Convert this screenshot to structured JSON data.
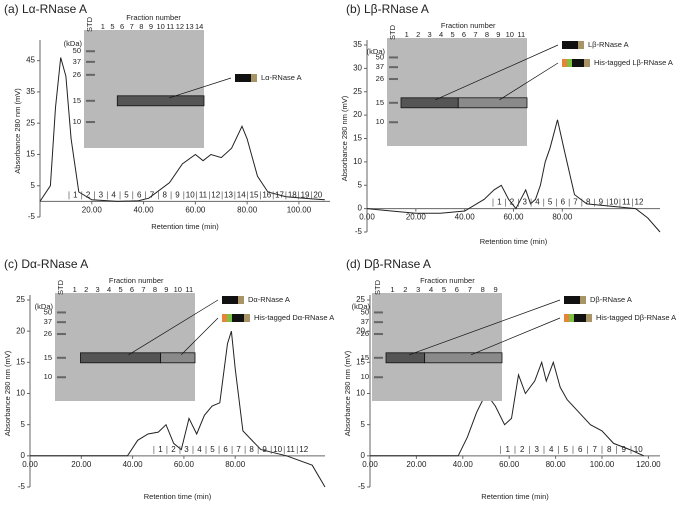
{
  "chart_data": [
    {
      "type": "line",
      "title": "(a) Lα-RNase A",
      "xlabel": "Retention time (min)",
      "ylabel": "Absorbance 280 nm (mV)",
      "x": [
        0,
        4,
        6,
        8,
        10,
        12,
        15,
        20,
        30,
        38,
        42,
        50,
        55,
        60,
        63,
        66,
        70,
        74,
        78,
        80,
        84,
        88,
        95,
        105,
        110
      ],
      "values": [
        0,
        5,
        30,
        46,
        40,
        20,
        3,
        0.5,
        0,
        0.2,
        1,
        6,
        12,
        15,
        13,
        15,
        14,
        17,
        24,
        20,
        8,
        3,
        1.5,
        0.8,
        0.5
      ],
      "xlim": [
        0,
        112
      ],
      "ylim": [
        -5,
        50
      ],
      "xticks": [
        {
          "value": 20,
          "label": "20.00"
        },
        {
          "value": 40,
          "label": "40.00"
        },
        {
          "value": 60,
          "label": "60.00"
        },
        {
          "value": 80,
          "label": "80.00"
        },
        {
          "value": 100,
          "label": "100.00"
        }
      ],
      "yticks": [
        -5,
        5,
        15,
        25,
        35,
        45
      ],
      "fractions": [
        "1",
        "2",
        "3",
        "4",
        "5",
        "6",
        "7",
        "8",
        "9",
        "10",
        "11",
        "12",
        "13",
        "14",
        "15",
        "16",
        "17",
        "18",
        "19",
        "20"
      ],
      "gel": {
        "heading": "Fraction number",
        "std": "STD",
        "kda": "(kDa)",
        "markers": [
          "50",
          "37",
          "26",
          "15",
          "10"
        ],
        "lanes": [
          "1",
          "5",
          "6",
          "7",
          "8",
          "9",
          "10",
          "11",
          "12",
          "13",
          "14"
        ],
        "legend": [
          "Lα-RNase A"
        ]
      }
    },
    {
      "type": "line",
      "title": "(b) Lβ-RNase A",
      "xlabel": "Retention time (min)",
      "ylabel": "Absorbance 280 nm (mV)",
      "x": [
        0,
        10,
        20,
        30,
        40,
        48,
        52,
        55,
        58,
        61,
        63,
        65,
        67,
        69,
        71,
        73,
        75,
        78,
        81,
        85,
        90,
        100,
        110,
        115,
        120
      ],
      "values": [
        0,
        -0.5,
        -1,
        -1,
        -0.5,
        2,
        4,
        5,
        2,
        0,
        2,
        4,
        1,
        2,
        5,
        10,
        13,
        19,
        12,
        3,
        1,
        0.5,
        0,
        -2,
        -5
      ],
      "xlim": [
        0,
        120
      ],
      "ylim": [
        -5,
        35
      ],
      "xticks": [
        {
          "value": 0,
          "label": "0.00"
        },
        {
          "value": 20,
          "label": "20.00"
        },
        {
          "value": 40,
          "label": "40.00"
        },
        {
          "value": 60,
          "label": "60.00"
        },
        {
          "value": 80,
          "label": "80.00"
        }
      ],
      "yticks": [
        -5,
        0,
        5,
        10,
        15,
        20,
        25,
        30,
        35
      ],
      "fractions": [
        "1",
        "2",
        "3",
        "4",
        "5",
        "6",
        "7",
        "8",
        "9",
        "10",
        "11",
        "12"
      ],
      "gel": {
        "heading": "Fraction number",
        "std": "STD",
        "kda": "(kDa)",
        "markers": [
          "50",
          "37",
          "26",
          "15",
          "10"
        ],
        "lanes": [
          "1",
          "2",
          "3",
          "4",
          "5",
          "6",
          "7",
          "8",
          "9",
          "10",
          "11"
        ],
        "legend": [
          "Lβ-RNase A",
          "His-tagged Lβ-RNase A"
        ]
      }
    },
    {
      "type": "line",
      "title": "(c) Dα-RNase A",
      "xlabel": "Retention time (min)",
      "ylabel": "Absorbance 280 nm (mV)",
      "x": [
        0,
        20,
        38,
        42,
        46,
        50,
        53,
        56,
        59,
        62,
        65,
        68,
        71,
        74,
        77,
        78.5,
        80,
        83,
        90,
        100,
        110,
        115
      ],
      "values": [
        0,
        0,
        0,
        2.5,
        3.5,
        3.8,
        5,
        2,
        1,
        6,
        3.5,
        6.5,
        8,
        8.5,
        18,
        20,
        14,
        4,
        1,
        0,
        -1.5,
        -5
      ],
      "xlim": [
        0,
        115
      ],
      "ylim": [
        -5,
        25
      ],
      "xticks": [
        {
          "value": 0,
          "label": "0.00"
        },
        {
          "value": 20,
          "label": "20.00"
        },
        {
          "value": 40,
          "label": "40.00"
        },
        {
          "value": 60,
          "label": "60.00"
        },
        {
          "value": 80,
          "label": "80.00"
        }
      ],
      "yticks": [
        -5,
        0,
        5,
        10,
        15,
        20,
        25
      ],
      "fractions": [
        "1",
        "2",
        "3",
        "4",
        "5",
        "6",
        "7",
        "8",
        "9",
        "10",
        "11",
        "12"
      ],
      "gel": {
        "heading": "Fraction number",
        "std": "STD",
        "kda": "(kDa)",
        "markers": [
          "50",
          "37",
          "26",
          "15",
          "10"
        ],
        "lanes": [
          "1",
          "2",
          "3",
          "4",
          "5",
          "6",
          "7",
          "8",
          "9",
          "10",
          "11"
        ],
        "legend": [
          "Dα-RNase A",
          "His-tagged Dα-RNase A"
        ]
      }
    },
    {
      "type": "line",
      "title": "(d) Dβ-RNase A",
      "xlabel": "Retention time (min)",
      "ylabel": "Absorbance 280 nm (mV)",
      "x": [
        0,
        20,
        38,
        42,
        46,
        50,
        54,
        58,
        61,
        64,
        67,
        71,
        74,
        76,
        79,
        82,
        85,
        90,
        95,
        100,
        105,
        112,
        118
      ],
      "values": [
        0,
        0,
        0,
        3,
        7,
        10,
        8,
        5,
        6,
        13,
        10,
        12,
        15,
        12,
        15,
        11,
        9,
        7,
        5,
        4,
        2,
        1,
        0
      ],
      "xlim": [
        0,
        125
      ],
      "ylim": [
        -5,
        25
      ],
      "xticks": [
        {
          "value": 0,
          "label": "0.00"
        },
        {
          "value": 20,
          "label": "20.00"
        },
        {
          "value": 40,
          "label": "40.00"
        },
        {
          "value": 60,
          "label": "60.00"
        },
        {
          "value": 80,
          "label": "80.00"
        },
        {
          "value": 100,
          "label": "100.00"
        },
        {
          "value": 120,
          "label": "120.00"
        }
      ],
      "yticks": [
        -5,
        0,
        5,
        10,
        15,
        20,
        25
      ],
      "fractions": [
        "1",
        "2",
        "3",
        "4",
        "5",
        "6",
        "7",
        "8",
        "9",
        "10"
      ],
      "gel": {
        "heading": "Fraction number",
        "std": "STD",
        "kda": "(kDa)",
        "markers": [
          "50",
          "37",
          "26",
          "15",
          "10"
        ],
        "lanes": [
          "1",
          "2",
          "3",
          "4",
          "5",
          "6",
          "7",
          "8",
          "9"
        ],
        "legend": [
          "Dβ-RNase A",
          "His-tagged Dβ-RNase A"
        ]
      }
    }
  ]
}
